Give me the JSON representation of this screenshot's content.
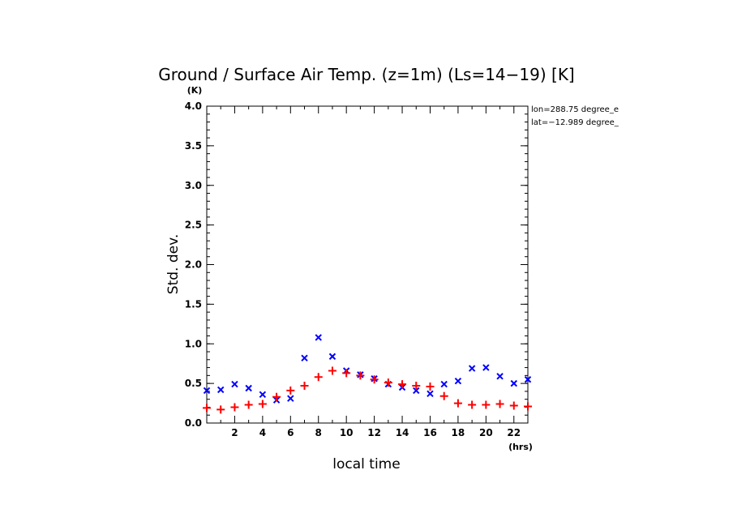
{
  "chart_data": {
    "type": "scatter",
    "title": "Ground / Surface Air Temp. (z=1m) (Ls=14−19) [K]",
    "xlabel": "local time",
    "ylabel": "Std. dev.",
    "x_unit": "(hrs)",
    "y_unit": "(K)",
    "xlim": [
      0,
      23
    ],
    "ylim": [
      0,
      4.0
    ],
    "x_ticks": [
      2,
      4,
      6,
      8,
      10,
      12,
      14,
      16,
      18,
      20,
      22
    ],
    "x_tick_labels": [
      "2",
      "4",
      "6",
      "8",
      "10",
      "12",
      "14",
      "16",
      "18",
      "20",
      "22"
    ],
    "y_ticks": [
      0,
      0.5,
      1.0,
      1.5,
      2.0,
      2.5,
      3.0,
      3.5,
      4.0
    ],
    "y_tick_labels": [
      "0.0",
      "0.5",
      "1.0",
      "1.5",
      "2.0",
      "2.5",
      "3.0",
      "3.5",
      "4.0"
    ],
    "grid": false,
    "annotations": [
      "lon=288.75 degree_e",
      "lat=−12.989 degree_"
    ],
    "series": [
      {
        "marker": "x",
        "color": "#0000ff",
        "x": [
          0.0,
          1.0,
          2.0,
          3.0,
          4.0,
          5.0,
          6.0,
          7.0,
          8.0,
          9.0,
          10.0,
          11.0,
          12.0,
          13.0,
          14.0,
          15.0,
          16.0,
          17.0,
          18.0,
          19.0,
          20.0,
          21.0,
          22.0,
          23.0
        ],
        "values": [
          0.41,
          0.42,
          0.49,
          0.44,
          0.36,
          0.29,
          0.31,
          0.82,
          1.08,
          0.84,
          0.66,
          0.61,
          0.56,
          0.49,
          0.45,
          0.41,
          0.37,
          0.49,
          0.53,
          0.69,
          0.7,
          0.59,
          0.5,
          0.55
        ]
      },
      {
        "marker": "+",
        "color": "#ff0000",
        "x": [
          0.0,
          1.0,
          2.0,
          3.0,
          4.0,
          5.0,
          6.0,
          7.0,
          8.0,
          9.0,
          10.0,
          11.0,
          12.0,
          13.0,
          14.0,
          15.0,
          16.0,
          17.0,
          18.0,
          19.0,
          20.0,
          21.0,
          22.0,
          23.0
        ],
        "values": [
          0.19,
          0.17,
          0.2,
          0.23,
          0.24,
          0.33,
          0.41,
          0.47,
          0.58,
          0.66,
          0.63,
          0.6,
          0.55,
          0.51,
          0.49,
          0.47,
          0.46,
          0.34,
          0.25,
          0.23,
          0.23,
          0.24,
          0.22,
          0.21
        ]
      }
    ]
  }
}
